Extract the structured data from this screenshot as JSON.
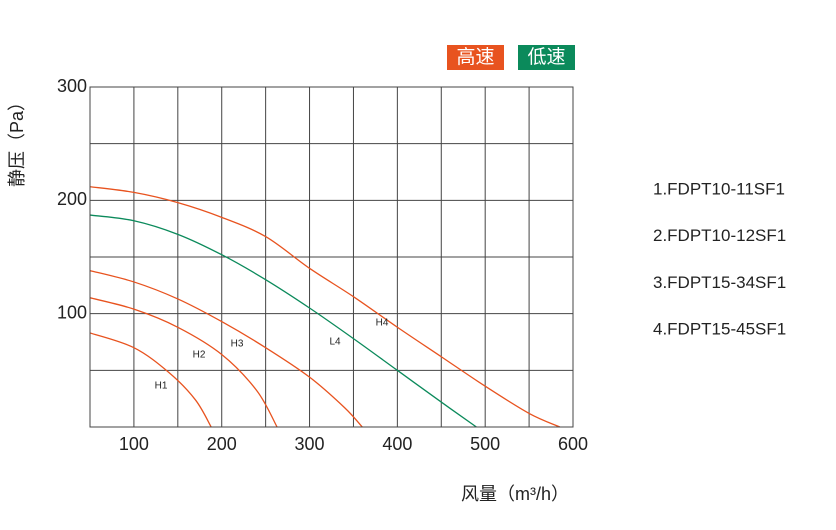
{
  "chart_data": {
    "type": "line",
    "xlabel": "风量（m³/h）",
    "ylabel": "静压（Pa）",
    "xlim": [
      50,
      600
    ],
    "ylim": [
      0,
      300
    ],
    "xticks": [
      100,
      200,
      300,
      400,
      500,
      600
    ],
    "yticks": [
      100,
      200,
      300
    ],
    "grid": true,
    "legend": [
      {
        "label": "高速",
        "color": "#e8531f"
      },
      {
        "label": "低速",
        "color": "#0b8a5b"
      }
    ],
    "models": [
      "1.FDPT10-11SF1",
      "2.FDPT10-12SF1",
      "3.FDPT15-34SF1",
      "4.FDPT15-45SF1"
    ],
    "series": [
      {
        "name": "H1",
        "color": "#e8531f",
        "x": [
          50,
          100,
          140,
          170,
          188
        ],
        "values": [
          83,
          70,
          48,
          24,
          0
        ]
      },
      {
        "name": "H2",
        "color": "#e8531f",
        "x": [
          50,
          100,
          150,
          200,
          240,
          263
        ],
        "values": [
          114,
          104,
          88,
          64,
          32,
          0
        ]
      },
      {
        "name": "H3",
        "color": "#e8531f",
        "x": [
          50,
          100,
          150,
          200,
          250,
          300,
          340,
          360
        ],
        "values": [
          138,
          128,
          113,
          93,
          70,
          44,
          17,
          0
        ]
      },
      {
        "name": "L4",
        "color": "#0b8a5b",
        "x": [
          50,
          100,
          150,
          200,
          250,
          300,
          350,
          400,
          450,
          490
        ],
        "values": [
          187,
          182,
          170,
          152,
          130,
          105,
          78,
          50,
          22,
          0
        ]
      },
      {
        "name": "H4",
        "color": "#e8531f",
        "x": [
          50,
          100,
          150,
          200,
          250,
          300,
          350,
          400,
          450,
          500,
          550,
          585
        ],
        "values": [
          212,
          207,
          198,
          185,
          168,
          140,
          115,
          88,
          62,
          36,
          12,
          0
        ]
      }
    ]
  }
}
